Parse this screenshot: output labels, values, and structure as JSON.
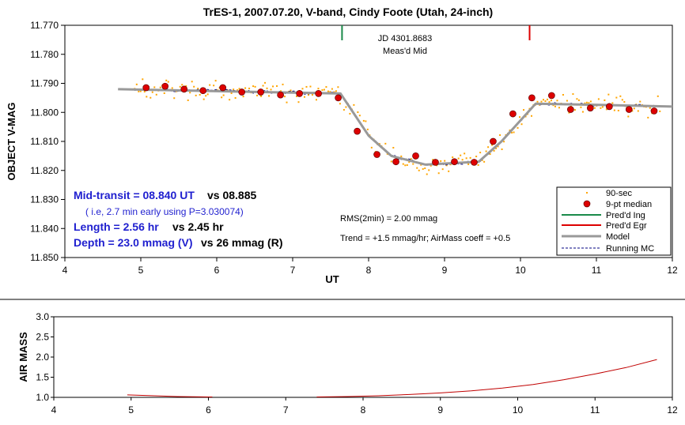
{
  "chart_data": [
    {
      "type": "scatter",
      "title": "TrES-1, 2007.07.20, V-band, Cindy Foote (Utah, 24-inch)",
      "xlabel": "UT",
      "ylabel": "OBJECT V-MAG",
      "xlim": [
        4,
        12
      ],
      "ylim": [
        11.77,
        11.85
      ],
      "y_inverted": true,
      "x_ticks": [
        "4",
        "5",
        "6",
        "7",
        "8",
        "9",
        "10",
        "11",
        "12"
      ],
      "y_ticks": [
        "11.770",
        "11.780",
        "11.790",
        "11.800",
        "11.810",
        "11.820",
        "11.830",
        "11.840",
        "11.850"
      ],
      "grid": false,
      "legend_position": "bottom-right",
      "legend": [
        "90-sec",
        "9-pt median",
        "Pred'd Ing",
        "Pred'd Egr",
        "Model",
        "Running MC"
      ],
      "predicted_ingress_ut": 7.65,
      "predicted_egress_ut": 10.12,
      "median_points": {
        "x": [
          5.07,
          5.32,
          5.57,
          5.82,
          6.08,
          6.33,
          6.58,
          6.84,
          7.09,
          7.34,
          7.6,
          7.85,
          8.11,
          8.36,
          8.62,
          8.88,
          9.13,
          9.39,
          9.64,
          9.9,
          10.15,
          10.41,
          10.66,
          10.92,
          11.17,
          11.43,
          11.76
        ],
        "y": [
          11.7915,
          11.791,
          11.792,
          11.7925,
          11.7915,
          11.793,
          11.793,
          11.794,
          11.7935,
          11.7935,
          11.795,
          11.8065,
          11.8145,
          11.817,
          11.815,
          11.8172,
          11.817,
          11.8172,
          11.81,
          11.8005,
          11.795,
          11.7942,
          11.799,
          11.7985,
          11.798,
          11.799,
          11.7995
        ]
      },
      "model": {
        "x": [
          4.7,
          7.63,
          8.0,
          8.3,
          8.75,
          9.45,
          9.75,
          10.2,
          11.2,
          12.0
        ],
        "y": [
          11.792,
          11.7935,
          11.808,
          11.815,
          11.818,
          11.817,
          11.81,
          11.797,
          11.7975,
          11.798
        ]
      },
      "annotations": {
        "jd_line1": "JD 4301.8683",
        "jd_line2": "Meas'd Mid",
        "midtransit_label": "Mid-transit = 08.840 UT",
        "midtransit_vs": "vs 08.885",
        "midtransit_note": "( i.e, 2.7 min early using P=3.030074)",
        "length_label": "Length = 2.56 hr",
        "length_vs": "vs 2.45 hr",
        "depth_label": "Depth = 23.0 mmag (V)",
        "depth_vs": "vs 26 mmag (R)",
        "rms": "RMS(2min) = 2.00 mmag",
        "trend": "Trend = +1.5 mmag/hr; AirMass coeff = +0.5"
      }
    },
    {
      "type": "line",
      "title": "",
      "xlabel": "",
      "ylabel": "AIR MASS",
      "xlim": [
        4,
        12
      ],
      "ylim": [
        1.0,
        3.0
      ],
      "x_ticks": [
        "4",
        "5",
        "6",
        "7",
        "8",
        "9",
        "10",
        "11",
        "12"
      ],
      "y_ticks": [
        "1.0",
        "1.5",
        "2.0",
        "2.5",
        "3.0"
      ],
      "series": [
        {
          "color": "#c00000",
          "x": [
            4.95,
            5.3,
            5.6,
            6.0,
            6.05
          ],
          "y": [
            1.06,
            1.04,
            1.02,
            1.01,
            1.01
          ]
        },
        {
          "color": "#c00000",
          "x": [
            7.4,
            7.8,
            8.2,
            8.6,
            9.0,
            9.4,
            9.8,
            10.2,
            10.6,
            11.0,
            11.4,
            11.8
          ],
          "y": [
            1.01,
            1.02,
            1.04,
            1.07,
            1.11,
            1.16,
            1.23,
            1.32,
            1.44,
            1.58,
            1.74,
            1.94
          ]
        }
      ]
    }
  ],
  "colors": {
    "points": "#ffa500",
    "median_fill": "#dd0000",
    "ingress": "#1a8a4a",
    "egress": "#dd0000",
    "model": "#999999",
    "running_mc": "#000080",
    "airmass": "#c00000"
  }
}
